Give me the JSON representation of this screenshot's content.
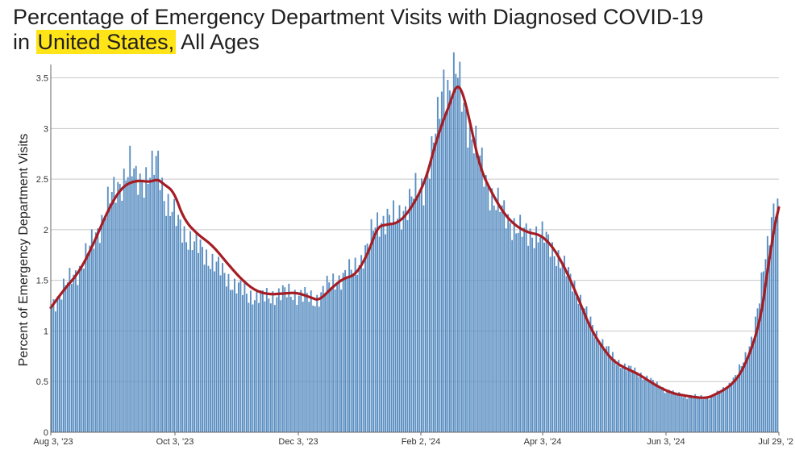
{
  "header": {
    "title_main": "Percentage of Emergency Department Visits with Diagnosed COVID-19",
    "title_in": "in",
    "title_region": "United States,",
    "title_ages": "All Ages"
  },
  "colors": {
    "bars": "#5b8fc2",
    "bar_edge": "#4a7db2",
    "trend_line": "#a51d24",
    "grid": "#c8c8c8",
    "highlight": "#ffe418"
  },
  "chart_data": {
    "type": "bar",
    "ylabel": "Percent of Emergency Department Visits",
    "xlabel": "",
    "ylim": [
      0,
      3.6
    ],
    "y_ticks": [
      0,
      0.5,
      1,
      1.5,
      2,
      2.5,
      3,
      3.5
    ],
    "y_tick_labels": [
      "0",
      "0.5",
      "1",
      "1.5",
      "2",
      "2.5",
      "3",
      "3.5"
    ],
    "grid": "horizontal",
    "x_start": "2023-08-03",
    "x_end": "2024-07-29",
    "x_tick_labels": [
      "Aug 3, '23",
      "Oct 3, '23",
      "Dec 3, '23",
      "Feb 2, '24",
      "Apr 3, '24",
      "Jun 3, '24",
      "Jul 29, '2"
    ],
    "series": [
      {
        "kind": "bar",
        "points": [
          [
            "2023-08-03",
            1.25
          ],
          [
            "2023-08-10",
            1.45
          ],
          [
            "2023-08-17",
            1.62
          ],
          [
            "2023-08-24",
            1.9
          ],
          [
            "2023-08-31",
            2.25
          ],
          [
            "2023-09-07",
            2.5
          ],
          [
            "2023-09-11",
            2.62
          ],
          [
            "2023-09-14",
            2.48
          ],
          [
            "2023-09-21",
            2.55
          ],
          [
            "2023-09-25",
            2.65
          ],
          [
            "2023-09-28",
            2.35
          ],
          [
            "2023-10-05",
            2.05
          ],
          [
            "2023-10-12",
            1.88
          ],
          [
            "2023-10-19",
            1.75
          ],
          [
            "2023-10-26",
            1.6
          ],
          [
            "2023-11-02",
            1.45
          ],
          [
            "2023-11-09",
            1.36
          ],
          [
            "2023-11-16",
            1.33
          ],
          [
            "2023-11-23",
            1.36
          ],
          [
            "2023-11-30",
            1.38
          ],
          [
            "2023-12-07",
            1.34
          ],
          [
            "2023-12-12",
            1.3
          ],
          [
            "2023-12-17",
            1.42
          ],
          [
            "2023-12-24",
            1.52
          ],
          [
            "2023-12-31",
            1.6
          ],
          [
            "2024-01-07",
            1.82
          ],
          [
            "2024-01-11",
            2.05
          ],
          [
            "2024-01-15",
            2.12
          ],
          [
            "2024-01-21",
            2.1
          ],
          [
            "2024-01-28",
            2.28
          ],
          [
            "2024-02-04",
            2.45
          ],
          [
            "2024-02-08",
            2.75
          ],
          [
            "2024-02-11",
            3.05
          ],
          [
            "2024-02-14",
            3.5
          ],
          [
            "2024-02-17",
            3.42
          ],
          [
            "2024-02-20",
            3.55
          ],
          [
            "2024-02-24",
            3.22
          ],
          [
            "2024-02-28",
            2.95
          ],
          [
            "2024-03-05",
            2.55
          ],
          [
            "2024-03-10",
            2.3
          ],
          [
            "2024-03-15",
            2.15
          ],
          [
            "2024-03-20",
            2.05
          ],
          [
            "2024-03-25",
            1.95
          ],
          [
            "2024-03-30",
            1.97
          ],
          [
            "2024-04-04",
            1.92
          ],
          [
            "2024-04-09",
            1.8
          ],
          [
            "2024-04-14",
            1.62
          ],
          [
            "2024-04-19",
            1.45
          ],
          [
            "2024-04-24",
            1.2
          ],
          [
            "2024-04-29",
            1.0
          ],
          [
            "2024-05-04",
            0.85
          ],
          [
            "2024-05-09",
            0.72
          ],
          [
            "2024-05-14",
            0.65
          ],
          [
            "2024-05-19",
            0.6
          ],
          [
            "2024-05-24",
            0.55
          ],
          [
            "2024-05-29",
            0.48
          ],
          [
            "2024-06-03",
            0.42
          ],
          [
            "2024-06-08",
            0.38
          ],
          [
            "2024-06-13",
            0.36
          ],
          [
            "2024-06-18",
            0.35
          ],
          [
            "2024-06-23",
            0.34
          ],
          [
            "2024-06-26",
            0.36
          ],
          [
            "2024-06-29",
            0.38
          ],
          [
            "2024-07-02",
            0.42
          ],
          [
            "2024-07-05",
            0.48
          ],
          [
            "2024-07-08",
            0.55
          ],
          [
            "2024-07-11",
            0.65
          ],
          [
            "2024-07-14",
            0.8
          ],
          [
            "2024-07-17",
            1.0
          ],
          [
            "2024-07-20",
            1.3
          ],
          [
            "2024-07-22",
            1.6
          ],
          [
            "2024-07-24",
            1.85
          ],
          [
            "2024-07-26",
            2.15
          ],
          [
            "2024-07-27",
            2.25
          ],
          [
            "2024-07-28",
            2.3
          ],
          [
            "2024-07-29",
            2.2
          ]
        ]
      },
      {
        "kind": "line",
        "points": [
          [
            "2023-08-03",
            1.23
          ],
          [
            "2023-08-10",
            1.42
          ],
          [
            "2023-08-17",
            1.58
          ],
          [
            "2023-08-24",
            1.85
          ],
          [
            "2023-08-31",
            2.18
          ],
          [
            "2023-09-07",
            2.42
          ],
          [
            "2023-09-14",
            2.49
          ],
          [
            "2023-09-21",
            2.47
          ],
          [
            "2023-09-25",
            2.5
          ],
          [
            "2023-09-28",
            2.45
          ],
          [
            "2023-10-03",
            2.38
          ],
          [
            "2023-10-08",
            2.1
          ],
          [
            "2023-10-15",
            1.95
          ],
          [
            "2023-10-22",
            1.85
          ],
          [
            "2023-10-29",
            1.68
          ],
          [
            "2023-11-05",
            1.52
          ],
          [
            "2023-11-12",
            1.4
          ],
          [
            "2023-11-19",
            1.36
          ],
          [
            "2023-11-26",
            1.37
          ],
          [
            "2023-12-03",
            1.38
          ],
          [
            "2023-12-10",
            1.33
          ],
          [
            "2023-12-14",
            1.3
          ],
          [
            "2023-12-20",
            1.42
          ],
          [
            "2023-12-26",
            1.52
          ],
          [
            "2024-01-01",
            1.55
          ],
          [
            "2024-01-07",
            1.75
          ],
          [
            "2024-01-12",
            2.03
          ],
          [
            "2024-01-16",
            2.05
          ],
          [
            "2024-01-23",
            2.07
          ],
          [
            "2024-01-30",
            2.25
          ],
          [
            "2024-02-05",
            2.5
          ],
          [
            "2024-02-09",
            2.8
          ],
          [
            "2024-02-13",
            3.05
          ],
          [
            "2024-02-17",
            3.25
          ],
          [
            "2024-02-20",
            3.43
          ],
          [
            "2024-02-23",
            3.38
          ],
          [
            "2024-02-27",
            3.05
          ],
          [
            "2024-03-03",
            2.6
          ],
          [
            "2024-03-09",
            2.35
          ],
          [
            "2024-03-15",
            2.15
          ],
          [
            "2024-03-21",
            2.03
          ],
          [
            "2024-03-27",
            1.97
          ],
          [
            "2024-04-02",
            1.95
          ],
          [
            "2024-04-08",
            1.83
          ],
          [
            "2024-04-14",
            1.62
          ],
          [
            "2024-04-20",
            1.35
          ],
          [
            "2024-04-26",
            1.05
          ],
          [
            "2024-05-02",
            0.85
          ],
          [
            "2024-05-08",
            0.7
          ],
          [
            "2024-05-14",
            0.63
          ],
          [
            "2024-05-20",
            0.58
          ],
          [
            "2024-05-26",
            0.5
          ],
          [
            "2024-06-01",
            0.43
          ],
          [
            "2024-06-07",
            0.38
          ],
          [
            "2024-06-13",
            0.36
          ],
          [
            "2024-06-19",
            0.34
          ],
          [
            "2024-06-24",
            0.34
          ],
          [
            "2024-06-28",
            0.38
          ],
          [
            "2024-07-02",
            0.42
          ],
          [
            "2024-07-06",
            0.48
          ],
          [
            "2024-07-10",
            0.58
          ],
          [
            "2024-07-14",
            0.75
          ],
          [
            "2024-07-18",
            0.98
          ],
          [
            "2024-07-21",
            1.25
          ],
          [
            "2024-07-23",
            1.55
          ],
          [
            "2024-07-25",
            1.8
          ],
          [
            "2024-07-27",
            2.05
          ],
          [
            "2024-07-29",
            2.22
          ]
        ]
      }
    ]
  }
}
